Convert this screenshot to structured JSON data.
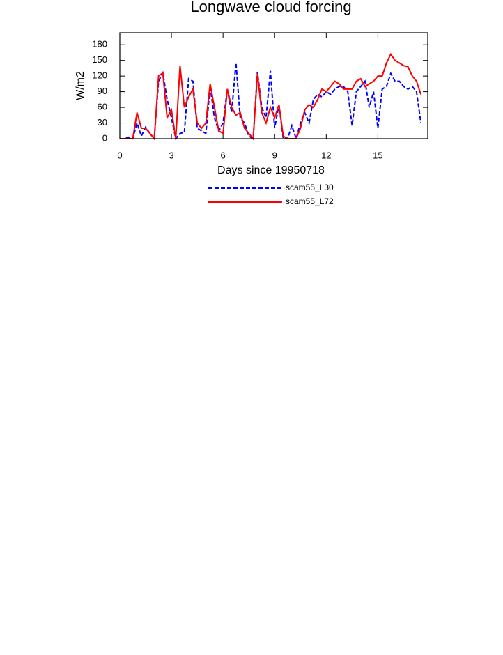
{
  "chart_data": {
    "type": "line",
    "title": "Longwave cloud forcing",
    "xlabel": "Days since 19950718",
    "ylabel": "W/m2",
    "x": [
      0,
      0.25,
      0.5,
      0.75,
      1,
      1.25,
      1.5,
      1.75,
      2,
      2.25,
      2.5,
      2.75,
      3,
      3.25,
      3.5,
      3.75,
      4,
      4.25,
      4.5,
      4.75,
      5,
      5.25,
      5.5,
      5.75,
      6,
      6.25,
      6.5,
      6.75,
      7,
      7.25,
      7.5,
      7.75,
      8,
      8.25,
      8.5,
      8.75,
      9,
      9.25,
      9.5,
      9.75,
      10,
      10.25,
      10.5,
      10.75,
      11,
      11.25,
      11.5,
      11.75,
      12,
      12.25,
      12.5,
      12.75,
      13,
      13.25,
      13.5,
      13.75,
      14,
      14.25,
      14.5,
      14.75,
      15,
      15.25,
      15.5,
      15.75,
      16,
      16.25,
      16.5,
      16.75,
      17,
      17.25,
      17.5
    ],
    "series": [
      {
        "name": "scam55_L30",
        "color": "#0000ff",
        "dash": true,
        "values": [
          0,
          0,
          3,
          0,
          30,
          5,
          22,
          10,
          0,
          110,
          126,
          75,
          40,
          0,
          10,
          12,
          115,
          110,
          20,
          15,
          10,
          100,
          40,
          15,
          30,
          95,
          50,
          145,
          40,
          30,
          5,
          0,
          128,
          60,
          40,
          130,
          20,
          65,
          0,
          0,
          25,
          0,
          30,
          50,
          30,
          75,
          85,
          80,
          90,
          85,
          95,
          100,
          100,
          90,
          25,
          90,
          100,
          110,
          60,
          90,
          20,
          95,
          100,
          125,
          110,
          110,
          100,
          95,
          100,
          90,
          30
        ]
      },
      {
        "name": "scam55_L72",
        "color": "#ff0000",
        "dash": false,
        "values": [
          0,
          0,
          0,
          0,
          50,
          20,
          20,
          10,
          0,
          120,
          126,
          40,
          55,
          0,
          140,
          60,
          80,
          95,
          30,
          20,
          30,
          105,
          60,
          15,
          10,
          95,
          60,
          45,
          50,
          20,
          10,
          0,
          125,
          50,
          30,
          60,
          40,
          65,
          5,
          0,
          0,
          0,
          20,
          55,
          65,
          60,
          75,
          95,
          90,
          100,
          110,
          105,
          95,
          95,
          95,
          110,
          115,
          100,
          105,
          110,
          120,
          120,
          145,
          162,
          150,
          145,
          140,
          138,
          120,
          110,
          85
        ]
      }
    ],
    "xlim": [
      0,
      17.9
    ],
    "ylim": [
      0,
      203
    ],
    "xticks": [
      0,
      3,
      6,
      9,
      12,
      15
    ],
    "yticks": [
      0,
      30,
      60,
      90,
      120,
      150,
      180
    ]
  }
}
